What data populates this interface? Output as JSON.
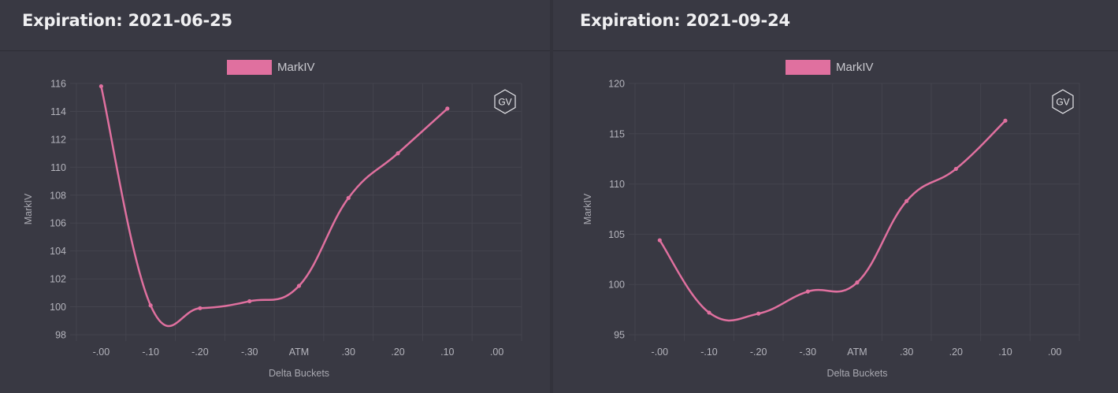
{
  "colors": {
    "line": "#e0709f",
    "grid": "#44444e",
    "tick_text": "#b4b4bc",
    "axis_title": "#a8a8b0"
  },
  "watermark_icon": "gv-hexagon-icon",
  "watermark_text": "GV",
  "charts": [
    {
      "title": "Expiration: 2021-06-25"
    },
    {
      "title": "Expiration: 2021-09-24"
    }
  ],
  "chart_data": [
    {
      "type": "line",
      "title": "Expiration: 2021-06-25",
      "xlabel": "Delta Buckets",
      "ylabel": "MarkIV",
      "legend": "top-center",
      "grid": true,
      "categories": [
        "-.00",
        "-.10",
        "-.20",
        "-.30",
        "ATM",
        ".30",
        ".20",
        ".10",
        ".00"
      ],
      "ylim": [
        98,
        116
      ],
      "yticks": [
        98,
        100,
        102,
        104,
        106,
        108,
        110,
        112,
        114,
        116
      ],
      "series": [
        {
          "name": "MarkIV",
          "values": [
            115.8,
            100.1,
            99.9,
            100.4,
            101.5,
            107.8,
            111.0,
            114.2,
            null
          ]
        }
      ]
    },
    {
      "type": "line",
      "title": "Expiration: 2021-09-24",
      "xlabel": "Delta Buckets",
      "ylabel": "MarkIV",
      "legend": "top-center",
      "grid": true,
      "categories": [
        "-.00",
        "-.10",
        "-.20",
        "-.30",
        "ATM",
        ".30",
        ".20",
        ".10",
        ".00"
      ],
      "ylim": [
        95,
        120
      ],
      "yticks": [
        95,
        100,
        105,
        110,
        115,
        120
      ],
      "series": [
        {
          "name": "MarkIV",
          "values": [
            104.4,
            97.2,
            97.1,
            99.3,
            100.2,
            108.3,
            111.5,
            116.3,
            null
          ]
        }
      ]
    }
  ]
}
